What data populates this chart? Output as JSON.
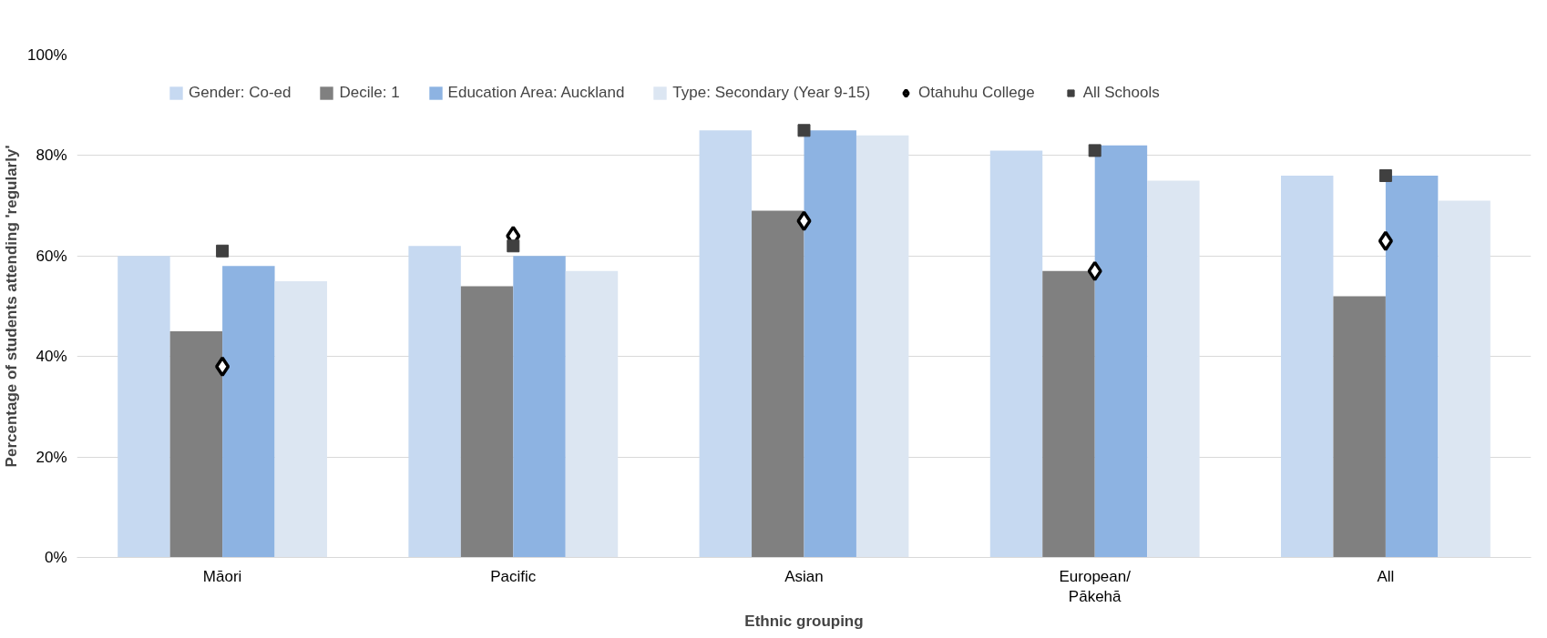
{
  "chart_data": {
    "type": "bar",
    "xlabel": "Ethnic grouping",
    "ylabel": "Percentage of students attending 'regularly'",
    "categories": [
      "Māori",
      "Pacific",
      "Asian",
      "European/\nPākehā",
      "All"
    ],
    "series": [
      {
        "name": "Gender: Co-ed",
        "color": "#c6d9f1",
        "values": [
          60,
          62,
          85,
          81,
          76
        ]
      },
      {
        "name": "Decile: 1",
        "color": "#808080",
        "values": [
          45,
          54,
          69,
          57,
          52
        ]
      },
      {
        "name": "Education Area: Auckland",
        "color": "#8db3e2",
        "values": [
          58,
          60,
          85,
          82,
          76
        ]
      },
      {
        "name": "Type: Secondary (Year 9-15)",
        "color": "#dce6f2",
        "values": [
          55,
          57,
          84,
          75,
          71
        ]
      },
      {
        "name": "Otahuhu College",
        "type": "scatter",
        "marker": "diamond",
        "color": "#000000",
        "values": [
          38,
          64,
          67,
          57,
          63
        ]
      },
      {
        "name": "All Schools",
        "type": "scatter",
        "marker": "square",
        "color": "#404040",
        "values": [
          61,
          62,
          85,
          81,
          76
        ]
      }
    ],
    "ylim": [
      0,
      100
    ],
    "yticks": [
      {
        "value": 0,
        "label": "0%"
      },
      {
        "value": 20,
        "label": "20%"
      },
      {
        "value": 40,
        "label": "40%"
      },
      {
        "value": 60,
        "label": "60%"
      },
      {
        "value": 80,
        "label": "80%"
      },
      {
        "value": 100,
        "label": "100%"
      }
    ],
    "grid": "y",
    "legend": "top"
  }
}
